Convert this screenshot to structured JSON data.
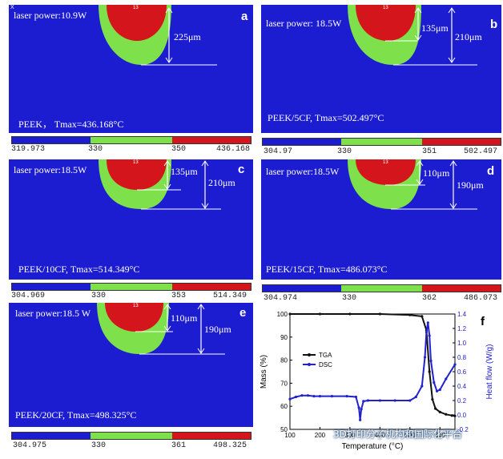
{
  "panels": [
    {
      "letter": "a",
      "laser": "laser power:10.9W",
      "material": "PEEK，  Tmax=436.168°C",
      "depths": [
        "225μm"
      ],
      "bar": {
        "min": "319.973",
        "t1": "330",
        "t2": "350",
        "max": "436.168"
      }
    },
    {
      "letter": "b",
      "laser": "laser power: 18.5W",
      "material": "PEEK/5CF, Tmax=502.497°C",
      "depths": [
        "135μm",
        "210μm"
      ],
      "bar": {
        "min": "304.97",
        "t1": "330",
        "t2": "351",
        "max": "502.497"
      }
    },
    {
      "letter": "c",
      "laser": "laser power:18.5W",
      "material": "PEEK/10CF, Tmax=514.349°C",
      "depths": [
        "135μm",
        "210μm"
      ],
      "bar": {
        "min": "304.969",
        "t1": "330",
        "t2": "353",
        "max": "514.349"
      }
    },
    {
      "letter": "d",
      "laser": "laser power:18.5W",
      "material": "PEEK/15CF, Tmax=486.073°C",
      "depths": [
        "110μm",
        "190μm"
      ],
      "bar": {
        "min": "304.974",
        "t1": "330",
        "t2": "362",
        "max": "486.073"
      }
    },
    {
      "letter": "e",
      "laser": "laser power:18.5 W",
      "material": "PEEK/20CF, Tmax=498.325°C",
      "depths": [
        "110μm",
        "190μm"
      ],
      "bar": {
        "min": "304.975",
        "t1": "330",
        "t2": "361",
        "max": "498.325"
      }
    }
  ],
  "node_label": "13",
  "axis_corner": "X",
  "colors": {
    "background": "#1c1cd0",
    "middle": "#7ee04a",
    "hot": "#d4161c"
  },
  "chart_letter": "f",
  "watermark": "3D打印分子机构和国际化平台",
  "chart_data": {
    "type": "line",
    "xlabel": "Temperature (°C)",
    "ylabel": "Mass (%)",
    "y2label": "Heat flow (W/g)",
    "xlim": [
      100,
      650
    ],
    "ylim": [
      50,
      100
    ],
    "y2lim": [
      -0.2,
      1.4
    ],
    "xticks": [
      "100",
      "200",
      "300",
      "400",
      "500",
      "600"
    ],
    "yticks": [
      "50",
      "60",
      "70",
      "80",
      "90",
      "100"
    ],
    "y2ticks": [
      "-0.2",
      "0.0",
      "0.2",
      "0.4",
      "0.6",
      "0.8",
      "1.0",
      "1.2",
      "1.4"
    ],
    "legend": [
      "TGA",
      "DSC"
    ],
    "series": [
      {
        "name": "TGA",
        "color": "#111111",
        "x": [
          100,
          200,
          300,
          400,
          500,
          540,
          555,
          565,
          575,
          585,
          600,
          620,
          640,
          650
        ],
        "y": [
          100,
          100,
          100,
          100,
          99.6,
          99,
          93,
          75,
          63,
          59,
          57.5,
          56.5,
          56,
          55.8
        ]
      },
      {
        "name": "DSC",
        "color": "#2222cc",
        "x": [
          100,
          120,
          140,
          160,
          180,
          200,
          240,
          290,
          320,
          330,
          334,
          338,
          345,
          360,
          400,
          450,
          500,
          520,
          540,
          550,
          555,
          560,
          565,
          570,
          580,
          590,
          600,
          620,
          650
        ],
        "y": [
          0.22,
          0.25,
          0.27,
          0.27,
          0.26,
          0.26,
          0.26,
          0.26,
          0.25,
          0.1,
          -0.07,
          0.08,
          0.19,
          0.2,
          0.2,
          0.2,
          0.2,
          0.25,
          0.4,
          0.8,
          1.15,
          1.28,
          1.1,
          0.75,
          0.45,
          0.33,
          0.35,
          0.5,
          0.7
        ]
      }
    ]
  }
}
